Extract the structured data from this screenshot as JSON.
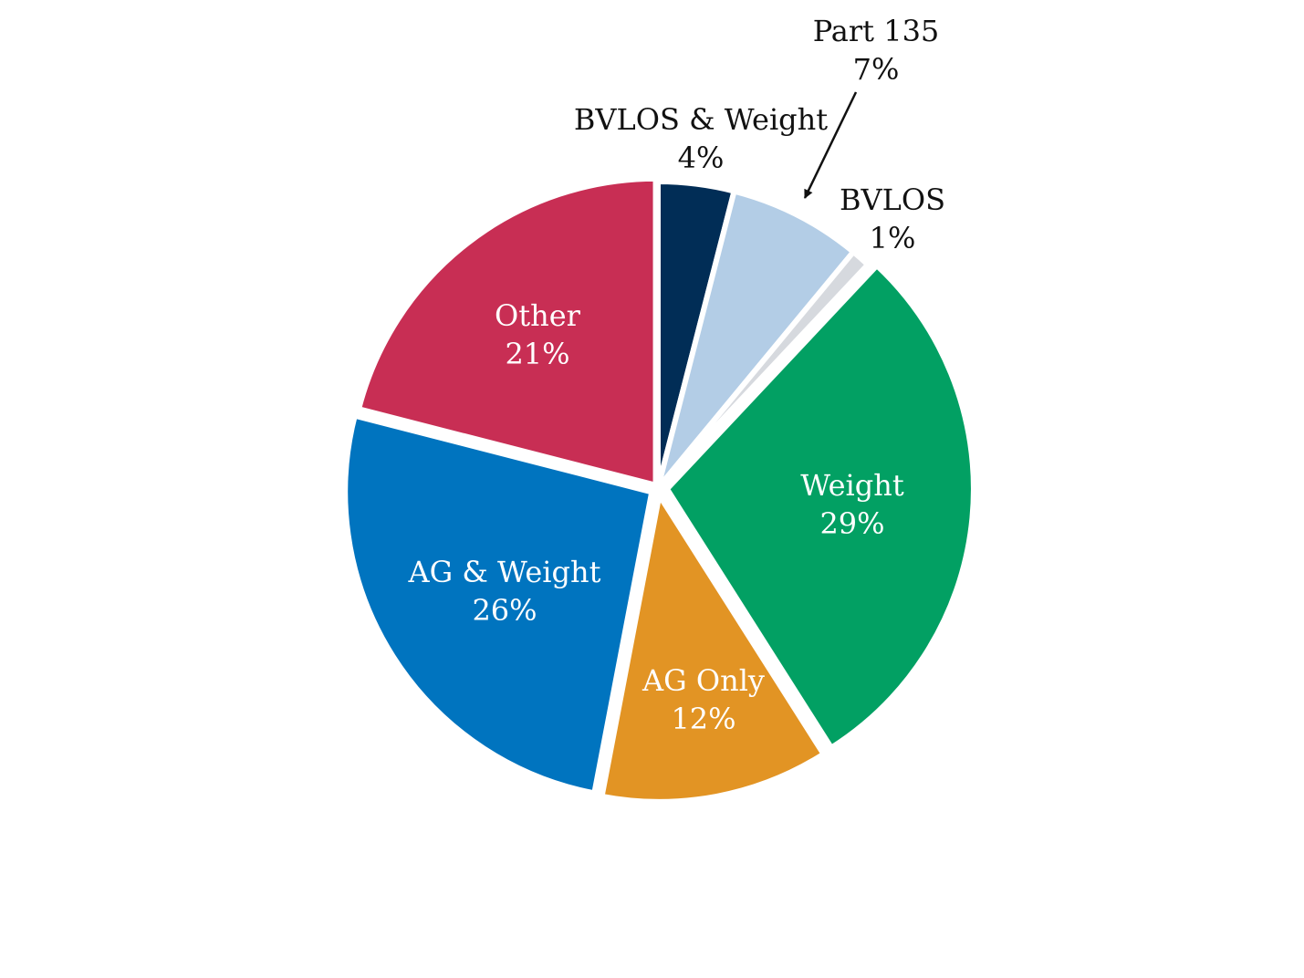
{
  "chart_data": {
    "type": "pie",
    "title": "",
    "slices": [
      {
        "label": "BVLOS & Weight",
        "value": 4,
        "pct_label": "4%",
        "color": "#012d56",
        "label_position": "outside"
      },
      {
        "label": "Part 135",
        "value": 7,
        "pct_label": "7%",
        "color": "#b3cde6",
        "label_position": "outside",
        "leader_arrow": true
      },
      {
        "label": "BVLOS",
        "value": 1,
        "pct_label": "1%",
        "color": "#d6d9de",
        "label_position": "outside"
      },
      {
        "label": "Weight",
        "value": 29,
        "pct_label": "29%",
        "color": "#02a063",
        "label_position": "inside"
      },
      {
        "label": "AG Only",
        "value": 12,
        "pct_label": "12%",
        "color": "#e29424",
        "label_position": "inside"
      },
      {
        "label": "AG & Weight",
        "value": 26,
        "pct_label": "26%",
        "color": "#0074bf",
        "label_position": "inside"
      },
      {
        "label": "Other",
        "value": 21,
        "pct_label": "21%",
        "color": "#c82e54",
        "label_position": "inside"
      }
    ],
    "start": "12 o'clock",
    "direction": "clockwise",
    "legend": "none",
    "slice_separator_color": "#ffffff"
  }
}
